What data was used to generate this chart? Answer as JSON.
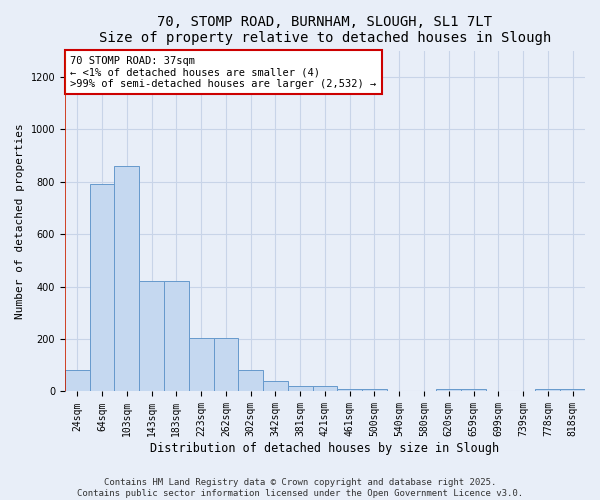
{
  "title": "70, STOMP ROAD, BURNHAM, SLOUGH, SL1 7LT",
  "subtitle": "Size of property relative to detached houses in Slough",
  "xlabel": "Distribution of detached houses by size in Slough",
  "ylabel": "Number of detached properties",
  "categories": [
    "24sqm",
    "64sqm",
    "103sqm",
    "143sqm",
    "183sqm",
    "223sqm",
    "262sqm",
    "302sqm",
    "342sqm",
    "381sqm",
    "421sqm",
    "461sqm",
    "500sqm",
    "540sqm",
    "580sqm",
    "620sqm",
    "659sqm",
    "699sqm",
    "739sqm",
    "778sqm",
    "818sqm"
  ],
  "values": [
    80,
    790,
    860,
    420,
    420,
    205,
    205,
    80,
    40,
    20,
    20,
    8,
    8,
    0,
    0,
    8,
    8,
    0,
    0,
    8,
    8
  ],
  "bar_color": "#c5d8f0",
  "bar_edge_color": "#6699cc",
  "ylim": [
    0,
    1300
  ],
  "yticks": [
    0,
    200,
    400,
    600,
    800,
    1000,
    1200
  ],
  "annotation_text": "70 STOMP ROAD: 37sqm\n← <1% of detached houses are smaller (4)\n>99% of semi-detached houses are larger (2,532) →",
  "annotation_box_color": "#ffffff",
  "annotation_box_edge_color": "#cc0000",
  "bg_color": "#e8eef8",
  "grid_color": "#c8d4e8",
  "footnote": "Contains HM Land Registry data © Crown copyright and database right 2025.\nContains public sector information licensed under the Open Government Licence v3.0.",
  "title_fontsize": 10,
  "xlabel_fontsize": 8.5,
  "ylabel_fontsize": 8,
  "tick_fontsize": 7,
  "annotation_fontsize": 7.5,
  "footnote_fontsize": 6.5
}
